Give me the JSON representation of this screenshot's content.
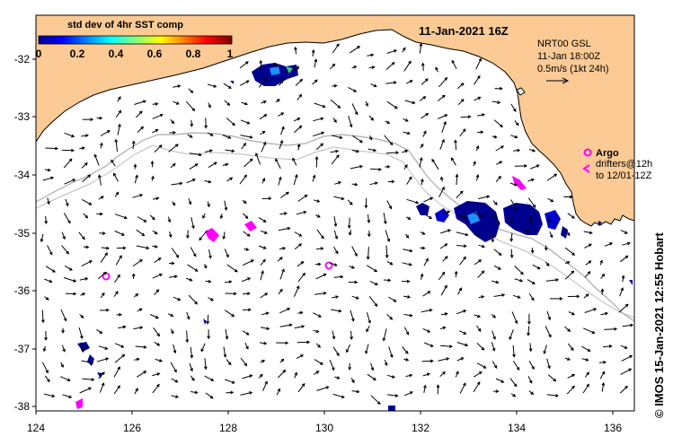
{
  "title": "11-Jan-2021 16Z",
  "colorbar": {
    "title": "std dev of 4hr SST comp",
    "ticks": [
      "0",
      "0.2",
      "0.4",
      "0.6",
      "0.8",
      "1"
    ]
  },
  "product": {
    "name": "NRT00 GSL",
    "time": "11-Jan 18:00Z",
    "scale": "0.5m/s (1kt 24h)"
  },
  "argo_legend": {
    "label": "Argo",
    "drifters_line1": "drifters@12h",
    "drifters_line2": "to 12/01-12Z"
  },
  "credit": "© IMOS 15-Jan-2021 12:55 Hobart",
  "axes": {
    "x_ticks": [
      "124",
      "126",
      "128",
      "130",
      "132",
      "134",
      "136"
    ],
    "y_ticks": [
      "-32",
      "-33",
      "-34",
      "-35",
      "-36",
      "-37",
      "-38"
    ]
  },
  "colors": {
    "land": "#fcca94",
    "sea": "#ffffff",
    "argo": "#ff00ff",
    "isobath": "#aaaaaa"
  }
}
